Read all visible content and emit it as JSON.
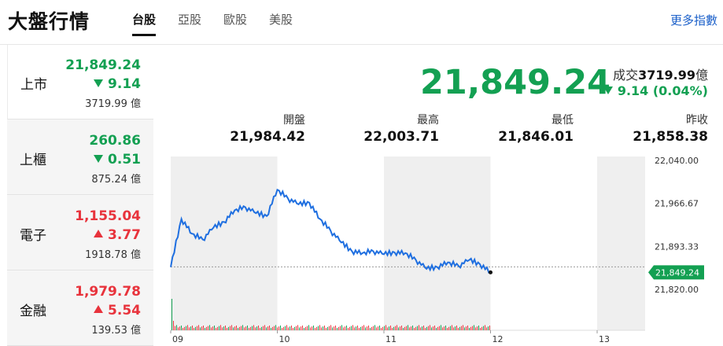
{
  "header": {
    "title": "大盤行情",
    "tabs": [
      {
        "label": "台股",
        "active": true
      },
      {
        "label": "亞股",
        "active": false
      },
      {
        "label": "歐股",
        "active": false
      },
      {
        "label": "美股",
        "active": false
      }
    ],
    "more_link": "更多指數"
  },
  "sidebar": {
    "items": [
      {
        "name": "上市",
        "price": "21,849.24",
        "change": "9.14",
        "direction": "down",
        "volume": "3719.99 億"
      },
      {
        "name": "上櫃",
        "price": "260.86",
        "change": "0.51",
        "direction": "down",
        "volume": "875.24 億"
      },
      {
        "name": "電子",
        "price": "1,155.04",
        "change": "3.77",
        "direction": "up",
        "volume": "1918.78 億"
      },
      {
        "name": "金融",
        "price": "1,979.78",
        "change": "5.54",
        "direction": "up",
        "volume": "139.53 億"
      }
    ]
  },
  "summary": {
    "price": "21,849.24",
    "volume_label": "成交",
    "volume_value": "3719.99",
    "volume_unit": "億",
    "change": "9.14 (0.04%)",
    "stats": [
      {
        "label": "開盤",
        "value": "21,984.42"
      },
      {
        "label": "最高",
        "value": "22,003.71"
      },
      {
        "label": "最低",
        "value": "21,846.01"
      },
      {
        "label": "昨收",
        "value": "21,858.38"
      }
    ]
  },
  "colors": {
    "up": "#e8333c",
    "down": "#13a052",
    "line": "#1f6fe0",
    "shade": "#efefef"
  },
  "chart_data": {
    "type": "line",
    "x_ticks": [
      "09",
      "10",
      "11",
      "12",
      "13"
    ],
    "y_ticks": [
      "22,040.00",
      "21,966.67",
      "21,893.33",
      "21,820.00"
    ],
    "ylim": [
      21820,
      22040
    ],
    "current_label": "21,849.24",
    "reference": 21858.38,
    "x": [
      9.0,
      9.1,
      9.2,
      9.3,
      9.4,
      9.5,
      9.6,
      9.7,
      9.8,
      9.9,
      10.0,
      10.1,
      10.2,
      10.3,
      10.4,
      10.5,
      10.6,
      10.7,
      10.8,
      10.9,
      11.0,
      11.1,
      11.2,
      11.3,
      11.4,
      11.5,
      11.6,
      11.7,
      11.8,
      11.9,
      12.0
    ],
    "values": [
      21858,
      21940,
      21915,
      21905,
      21925,
      21935,
      21955,
      21960,
      21950,
      21945,
      21990,
      21975,
      21965,
      21968,
      21940,
      21920,
      21900,
      21885,
      21882,
      21885,
      21880,
      21883,
      21882,
      21870,
      21855,
      21858,
      21866,
      21860,
      21870,
      21863,
      21849
    ],
    "volume_bars": "decorative"
  }
}
